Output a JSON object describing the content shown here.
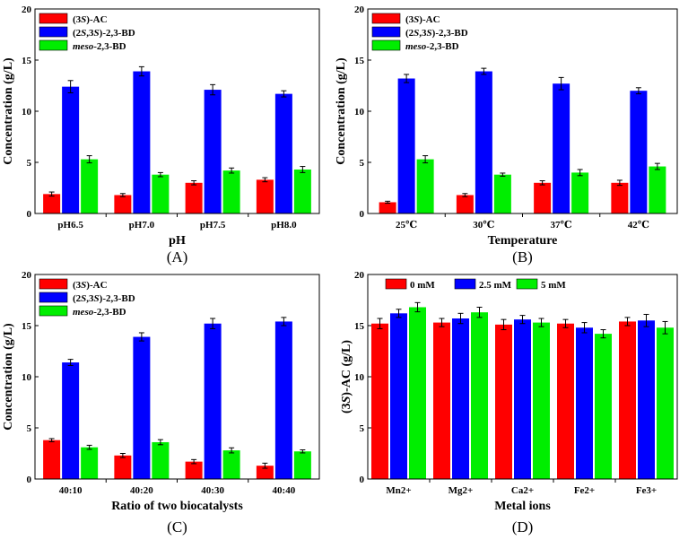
{
  "colors": {
    "s3ac": "#ff0000",
    "s2s3bd": "#0000ff",
    "meso": "#00ee00"
  },
  "legend_segments": {
    "s3ac": [
      [
        "(3",
        ""
      ],
      [
        "S",
        "i"
      ],
      [
        ")-AC",
        ""
      ]
    ],
    "s2s3bd": [
      [
        "(2",
        ""
      ],
      [
        "S",
        "i"
      ],
      [
        ",3",
        ""
      ],
      [
        "S",
        "i"
      ],
      [
        ")-2,3-BD",
        ""
      ]
    ],
    "meso": [
      [
        "meso",
        "i"
      ],
      [
        "-2,3-BD",
        ""
      ]
    ]
  },
  "ylabel_segments_D": [
    [
      "(3",
      ""
    ],
    [
      "S",
      "i"
    ],
    [
      ")-AC (g/L)",
      ""
    ]
  ],
  "chart_data": [
    {
      "panel": "(A)",
      "type": "bar",
      "xlabel": "pH",
      "ylabel": "Concentration (g/L)",
      "ylim": [
        0,
        20
      ],
      "yticks": [
        "0",
        "5",
        "10",
        "15",
        "20"
      ],
      "categories": [
        "pH6.5",
        "pH7.0",
        "pH7.5",
        "pH8.0"
      ],
      "legend_position": "top-left",
      "series": [
        {
          "name": "(3S)-AC",
          "color_key": "s3ac",
          "legend_key": "s3ac",
          "values": [
            1.9,
            1.8,
            3.0,
            3.3
          ],
          "errors": [
            0.2,
            0.15,
            0.2,
            0.2
          ]
        },
        {
          "name": "(2S,3S)-2,3-BD",
          "color_key": "s2s3bd",
          "legend_key": "s2s3bd",
          "values": [
            12.4,
            13.9,
            12.1,
            11.7
          ],
          "errors": [
            0.6,
            0.45,
            0.5,
            0.3
          ]
        },
        {
          "name": "meso-2,3-BD",
          "color_key": "meso",
          "legend_key": "meso",
          "values": [
            5.3,
            3.8,
            4.2,
            4.3
          ],
          "errors": [
            0.35,
            0.2,
            0.25,
            0.3
          ]
        }
      ]
    },
    {
      "panel": "(B)",
      "type": "bar",
      "xlabel": "Temperature",
      "ylabel": "Concentration (g/L)",
      "ylim": [
        0,
        20
      ],
      "yticks": [
        "0",
        "5",
        "10",
        "15",
        "20"
      ],
      "categories": [
        "25℃",
        "30℃",
        "37℃",
        "42℃"
      ],
      "legend_position": "top-left",
      "series": [
        {
          "name": "(3S)-AC",
          "color_key": "s3ac",
          "legend_key": "s3ac",
          "values": [
            1.1,
            1.8,
            3.0,
            3.0
          ],
          "errors": [
            0.1,
            0.15,
            0.2,
            0.25
          ]
        },
        {
          "name": "(2S,3S)-2,3-BD",
          "color_key": "s2s3bd",
          "legend_key": "s2s3bd",
          "values": [
            13.2,
            13.9,
            12.7,
            12.0
          ],
          "errors": [
            0.4,
            0.3,
            0.6,
            0.3
          ]
        },
        {
          "name": "meso-2,3-BD",
          "color_key": "meso",
          "legend_key": "meso",
          "values": [
            5.3,
            3.8,
            4.0,
            4.6
          ],
          "errors": [
            0.35,
            0.15,
            0.3,
            0.3
          ]
        }
      ]
    },
    {
      "panel": "(C)",
      "type": "bar",
      "xlabel": "Ratio of two biocatalysts",
      "ylabel": "Concentration (g/L)",
      "ylim": [
        0,
        20
      ],
      "yticks": [
        "0",
        "5",
        "10",
        "15",
        "20"
      ],
      "categories": [
        "40:10",
        "40:20",
        "40:30",
        "40:40"
      ],
      "legend_position": "top-left",
      "series": [
        {
          "name": "(3S)-AC",
          "color_key": "s3ac",
          "legend_key": "s3ac",
          "values": [
            3.8,
            2.3,
            1.7,
            1.3
          ],
          "errors": [
            0.15,
            0.2,
            0.2,
            0.25
          ]
        },
        {
          "name": "(2S,3S)-2,3-BD",
          "color_key": "s2s3bd",
          "legend_key": "s2s3bd",
          "values": [
            11.4,
            13.9,
            15.2,
            15.4
          ],
          "errors": [
            0.3,
            0.4,
            0.5,
            0.4
          ]
        },
        {
          "name": "meso-2,3-BD",
          "color_key": "meso",
          "legend_key": "meso",
          "values": [
            3.1,
            3.6,
            2.8,
            2.7
          ],
          "errors": [
            0.2,
            0.25,
            0.25,
            0.15
          ]
        }
      ]
    },
    {
      "panel": "(D)",
      "type": "bar",
      "xlabel": "Metal ions",
      "ylabel": "(3S)-AC (g/L)",
      "ylim": [
        0,
        20
      ],
      "yticks": [
        "0",
        "5",
        "10",
        "15",
        "20"
      ],
      "categories": [
        "Mn2+",
        "Mg2+",
        "Ca2+",
        "Fe2+",
        "Fe3+"
      ],
      "legend_position": "top-horizontal",
      "series": [
        {
          "name": "0 mM",
          "color_key": "s3ac",
          "values": [
            15.2,
            15.3,
            15.1,
            15.2,
            15.4
          ],
          "errors": [
            0.5,
            0.4,
            0.5,
            0.4,
            0.4
          ]
        },
        {
          "name": "2.5 mM",
          "color_key": "s2s3bd",
          "values": [
            16.2,
            15.7,
            15.6,
            14.8,
            15.5
          ],
          "errors": [
            0.4,
            0.5,
            0.4,
            0.5,
            0.6
          ]
        },
        {
          "name": "5 mM",
          "color_key": "meso",
          "values": [
            16.8,
            16.3,
            15.3,
            14.2,
            14.8
          ],
          "errors": [
            0.45,
            0.5,
            0.4,
            0.4,
            0.6
          ]
        }
      ]
    }
  ]
}
